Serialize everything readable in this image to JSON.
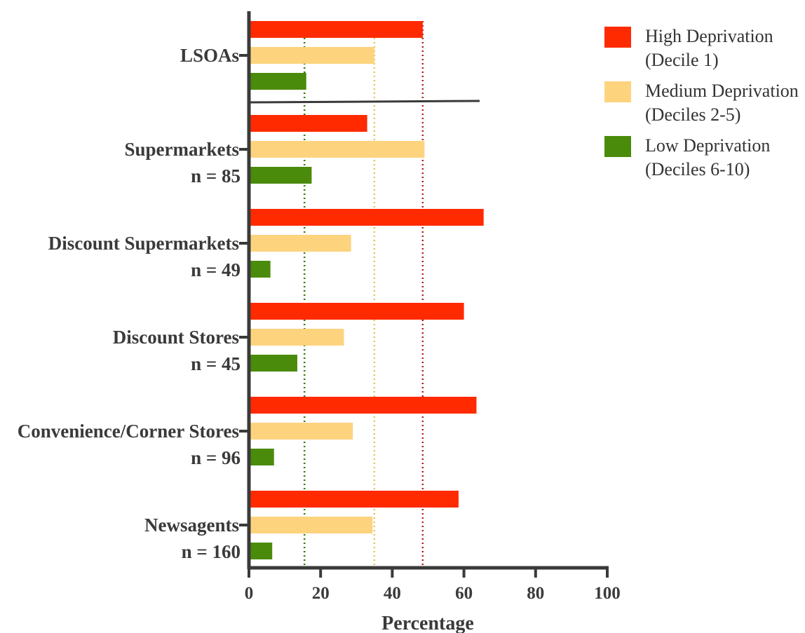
{
  "chart_data": {
    "type": "bar",
    "orientation": "horizontal",
    "xlabel": "Percentage",
    "ylabel": "",
    "xlim": [
      0,
      100
    ],
    "xticks": [
      "0",
      "20",
      "40",
      "60",
      "80",
      "100"
    ],
    "categories": [
      {
        "label": "LSOAs",
        "n": ""
      },
      {
        "label": "Supermarkets",
        "n": "n = 85"
      },
      {
        "label": "Discount Supermarkets",
        "n": "n = 49"
      },
      {
        "label": "Discount Stores",
        "n": "n = 45"
      },
      {
        "label": "Convenience/Corner Stores",
        "n": "n = 96"
      },
      {
        "label": "Newsagents",
        "n": "n = 160"
      }
    ],
    "series": [
      {
        "name": "High Deprivation",
        "sub": "(Decile 1)",
        "color": "#ff2a00",
        "values": [
          48.5,
          33,
          65.5,
          60,
          63.5,
          58.5
        ]
      },
      {
        "name": "Medium Deprivation",
        "sub": "(Deciles 2-5)",
        "color": "#fdd37e",
        "values": [
          35,
          49,
          28.5,
          26.5,
          29,
          34.5
        ]
      },
      {
        "name": "Low Deprivation",
        "sub": "(Deciles 6-10)",
        "color": "#4b8b0b",
        "values": [
          16,
          17.5,
          6,
          13.5,
          7,
          6.5
        ]
      }
    ],
    "reference_lines": [
      {
        "series": "High Deprivation",
        "value": 48.5,
        "color": "#b22222"
      },
      {
        "series": "Medium Deprivation",
        "value": 35,
        "color": "#e8c35a"
      },
      {
        "series": "Low Deprivation",
        "value": 15.5,
        "color": "#2e7d00"
      }
    ],
    "legend_position": "top-right",
    "grid": false
  }
}
